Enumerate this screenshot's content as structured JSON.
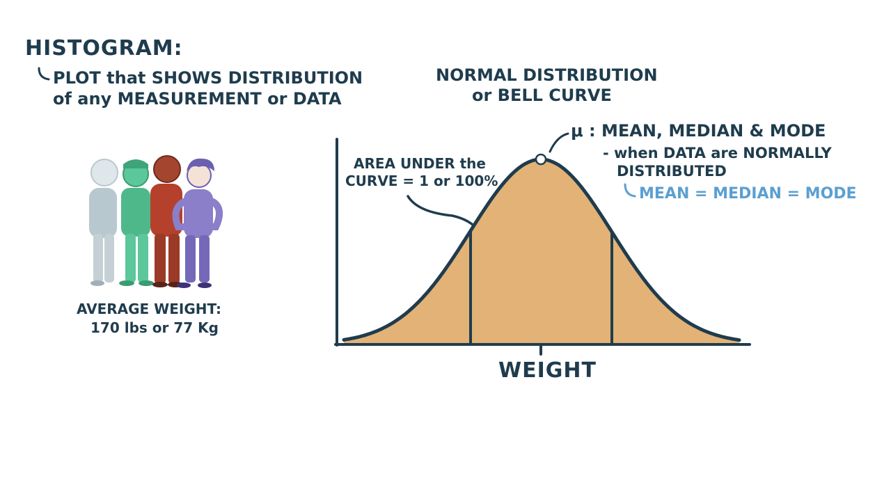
{
  "histogram": {
    "title": "HISTOGRAM:",
    "definition_line1": "PLOT that SHOWS DISTRIBUTION",
    "definition_line2": "of any MEASUREMENT or DATA"
  },
  "normal_distribution": {
    "title_line1": "NORMAL DISTRIBUTION",
    "title_line2": "or BELL CURVE"
  },
  "area_note": {
    "line1": "AREA UNDER the",
    "line2": "CURVE = 1 or 100%"
  },
  "mu_note": {
    "line": "μ : MEAN, MEDIAN & MODE",
    "condition_line1": "- when DATA are NORMALLY",
    "condition_line2": "DISTRIBUTED",
    "equality": "MEAN = MEDIAN = MODE"
  },
  "average": {
    "line1": "AVERAGE WEIGHT:",
    "line2": "170 lbs or 77 Kg"
  },
  "axis": {
    "xlabel": "WEIGHT"
  },
  "colors": {
    "ink": "#1f3c4d",
    "fill": "#e3b276",
    "accent_blue": "#5b9fd1",
    "person_gray": "#b8c8cf",
    "person_green": "#4fb88a",
    "person_red": "#b5402c",
    "person_purple": "#8a7fc8"
  },
  "icons": [
    "people-group-icon",
    "mean-marker-icon"
  ]
}
